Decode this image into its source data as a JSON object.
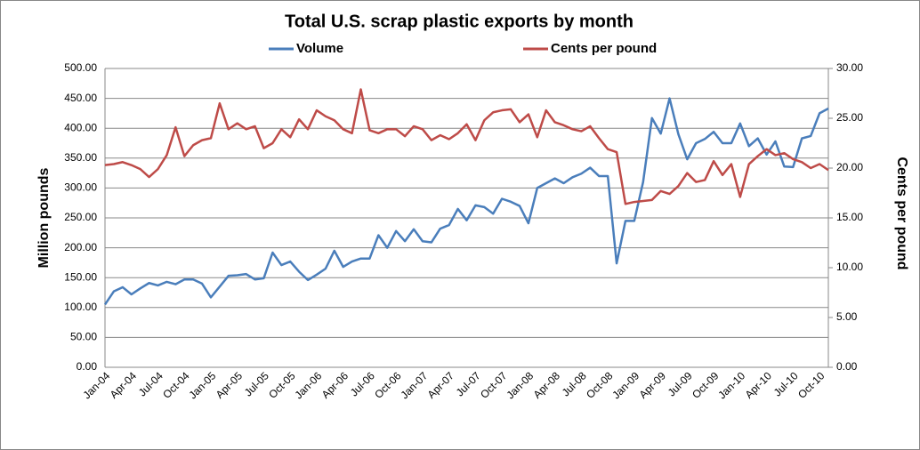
{
  "chart_data": {
    "type": "line",
    "title": "Total U.S. scrap plastic exports by month",
    "y_label": "Million pounds",
    "y2_label": "Cents per pound",
    "categories": [
      "Jan-04",
      null,
      null,
      "Apr-04",
      null,
      null,
      "Jul-04",
      null,
      null,
      "Oct-04",
      null,
      null,
      "Jan-05",
      null,
      null,
      "Apr-05",
      null,
      null,
      "Jul-05",
      null,
      null,
      "Oct-05",
      null,
      null,
      "Jan-06",
      null,
      null,
      "Apr-06",
      null,
      null,
      "Jul-06",
      null,
      null,
      "Oct-06",
      null,
      null,
      "Jan-07",
      null,
      null,
      "Apr-07",
      null,
      null,
      "Jul-07",
      null,
      null,
      "Oct-07",
      null,
      null,
      "Jan-08",
      null,
      null,
      "Apr-08",
      null,
      null,
      "Jul-08",
      null,
      null,
      "Oct-08",
      null,
      null,
      "Jan-09",
      null,
      null,
      "Apr-09",
      null,
      null,
      "Jul-09",
      null,
      null,
      "Oct-09",
      null,
      null,
      "Jan-10",
      null,
      null,
      "Apr-10",
      null,
      null,
      "Jul-10",
      null,
      null,
      "Oct-10",
      null
    ],
    "series": [
      {
        "name": "Volume",
        "color": "#4a7ebb",
        "values": [
          105,
          127,
          134,
          122,
          132,
          141,
          137,
          143,
          139,
          147,
          147,
          140,
          117,
          135,
          153,
          154,
          156,
          147,
          149,
          192,
          171,
          177,
          160,
          146,
          155,
          165,
          195,
          168,
          177,
          182,
          182,
          221,
          200,
          228,
          211,
          231,
          211,
          209,
          232,
          238,
          265,
          246,
          271,
          268,
          257,
          282,
          277,
          270,
          241,
          300,
          308,
          316,
          308,
          318,
          324,
          334,
          320,
          320,
          174,
          245,
          245,
          310,
          417,
          391,
          450,
          390,
          348,
          375,
          382,
          394,
          375,
          375,
          408,
          370,
          383,
          356,
          378,
          336,
          335,
          383,
          387,
          425,
          433
        ]
      },
      {
        "name": "Cents per pound",
        "color": "#be4b48",
        "axis": "y2",
        "values": [
          20.3,
          20.4,
          20.6,
          20.3,
          19.9,
          19.1,
          19.9,
          21.3,
          24.1,
          21.2,
          22.3,
          22.8,
          23.0,
          26.5,
          23.9,
          24.5,
          23.9,
          24.2,
          22.0,
          22.5,
          23.9,
          23.1,
          24.9,
          23.9,
          25.8,
          25.2,
          24.8,
          23.9,
          23.5,
          27.9,
          23.8,
          23.5,
          23.9,
          23.9,
          23.2,
          24.2,
          23.9,
          22.8,
          23.3,
          22.9,
          23.5,
          24.4,
          22.8,
          24.8,
          25.6,
          25.8,
          25.9,
          24.6,
          25.4,
          23.1,
          25.8,
          24.6,
          24.3,
          23.9,
          23.7,
          24.2,
          23.0,
          21.9,
          21.6,
          16.4,
          16.6,
          16.7,
          16.8,
          17.7,
          17.4,
          18.2,
          19.5,
          18.6,
          18.8,
          20.7,
          19.3,
          20.4,
          17.1,
          20.4,
          21.2,
          21.9,
          21.3,
          21.5,
          20.9,
          20.6,
          20.0,
          20.4,
          19.8
        ]
      }
    ],
    "ylim": [
      0,
      500
    ],
    "yticks": [
      {
        "value": 0,
        "label": "0.00"
      },
      {
        "value": 50,
        "label": "50.00"
      },
      {
        "value": 100,
        "label": "100.00"
      },
      {
        "value": 150,
        "label": "150.00"
      },
      {
        "value": 200,
        "label": "200.00"
      },
      {
        "value": 250,
        "label": "250.00"
      },
      {
        "value": 300,
        "label": "300.00"
      },
      {
        "value": 350,
        "label": "350.00"
      },
      {
        "value": 400,
        "label": "400.00"
      },
      {
        "value": 450,
        "label": "450.00"
      },
      {
        "value": 500,
        "label": "500.00"
      }
    ],
    "y2lim": [
      0,
      30
    ],
    "y2ticks": [
      {
        "value": 0,
        "label": "0.00"
      },
      {
        "value": 5,
        "label": "5.00"
      },
      {
        "value": 10,
        "label": "10.00"
      },
      {
        "value": 15,
        "label": "15.00"
      },
      {
        "value": 20,
        "label": "20.00"
      },
      {
        "value": 25,
        "label": "25.00"
      },
      {
        "value": 30,
        "label": "30.00"
      }
    ],
    "grid": true,
    "legend": "top"
  }
}
